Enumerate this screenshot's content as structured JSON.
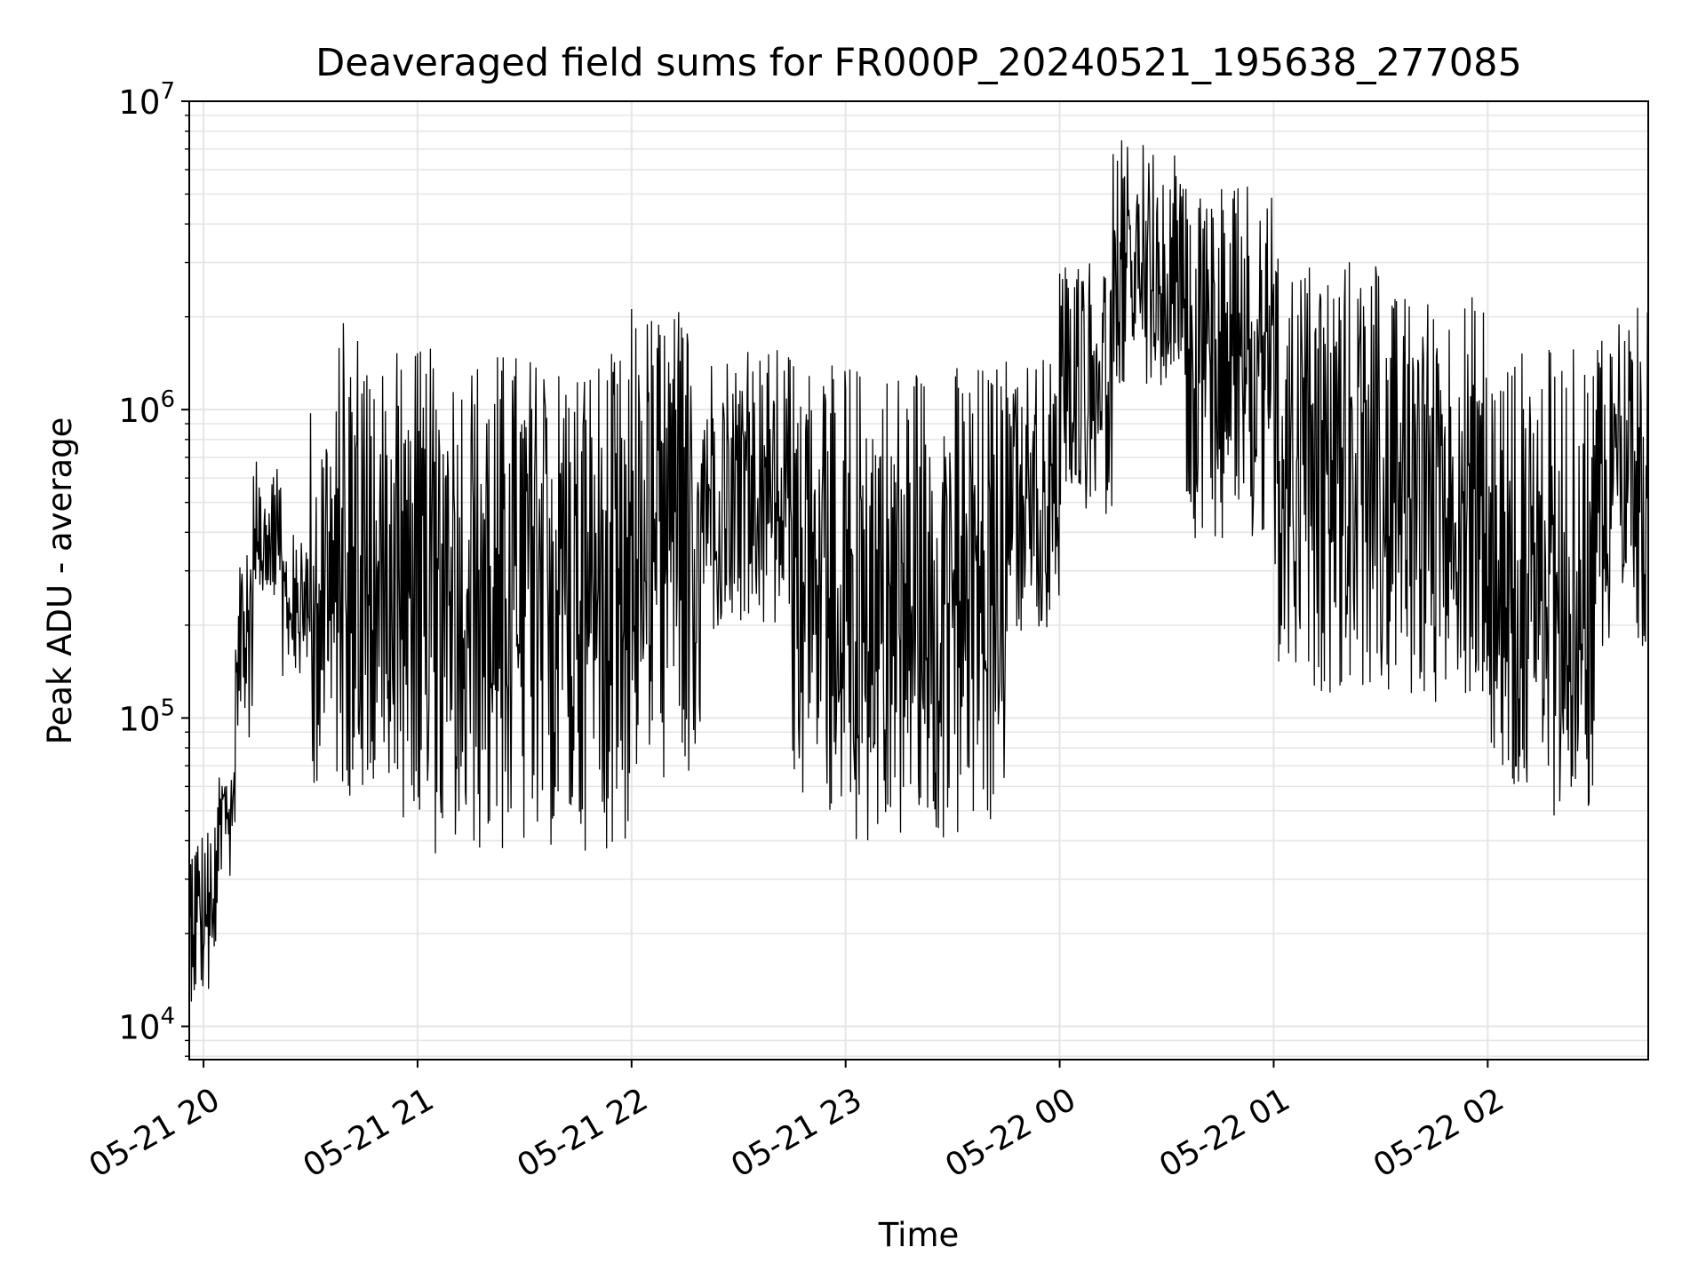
{
  "chart_data": {
    "type": "line",
    "title": "Deaveraged field sums for FR000P_20240521_195638_277085",
    "xlabel": "Time",
    "ylabel": "Peak ADU - average",
    "yscale": "log",
    "ylim": [
      7800,
      10000000
    ],
    "xlim": [
      "2024-05-21 19:56",
      "2024-05-22 02:45"
    ],
    "grid": true,
    "line_color": "#000000",
    "grid_color": "#e6e6e6",
    "x_ticks": [
      {
        "t": "2024-05-21 20:00",
        "label": "05-21 20"
      },
      {
        "t": "2024-05-21 21:00",
        "label": "05-21 21"
      },
      {
        "t": "2024-05-21 22:00",
        "label": "05-21 22"
      },
      {
        "t": "2024-05-21 23:00",
        "label": "05-21 23"
      },
      {
        "t": "2024-05-22 00:00",
        "label": "05-22 00"
      },
      {
        "t": "2024-05-22 01:00",
        "label": "05-22 01"
      },
      {
        "t": "2024-05-22 02:00",
        "label": "05-22 02"
      }
    ],
    "y_ticks": [
      {
        "v": 10000,
        "base": "10",
        "exp": "4"
      },
      {
        "v": 100000,
        "base": "10",
        "exp": "5"
      },
      {
        "v": 1000000,
        "base": "10",
        "exp": "6"
      },
      {
        "v": 10000000,
        "base": "10",
        "exp": "7"
      }
    ],
    "series": [
      {
        "segments": [
          {
            "start": "2024-05-21 19:56",
            "end": "2024-05-21 20:04",
            "low": 12000,
            "high": 45000
          },
          {
            "start": "2024-05-21 20:04",
            "end": "2024-05-21 20:09",
            "low": 30000,
            "high": 70000
          },
          {
            "start": "2024-05-21 20:09",
            "end": "2024-05-21 20:14",
            "low": 80000,
            "high": 350000
          },
          {
            "start": "2024-05-21 20:14",
            "end": "2024-05-21 20:22",
            "low": 250000,
            "high": 680000
          },
          {
            "start": "2024-05-21 20:22",
            "end": "2024-05-21 20:30",
            "low": 130000,
            "high": 400000
          },
          {
            "start": "2024-05-21 20:30",
            "end": "2024-05-21 20:38",
            "low": 60000,
            "high": 1100000
          },
          {
            "start": "2024-05-21 20:38",
            "end": "2024-05-21 20:45",
            "low": 55000,
            "high": 2000000
          },
          {
            "start": "2024-05-21 20:45",
            "end": "2024-05-21 21:00",
            "low": 45000,
            "high": 1550000
          },
          {
            "start": "2024-05-21 21:00",
            "end": "2024-05-21 21:30",
            "low": 35000,
            "high": 1600000
          },
          {
            "start": "2024-05-21 21:30",
            "end": "2024-05-21 22:00",
            "low": 37000,
            "high": 1550000
          },
          {
            "start": "2024-05-21 22:00",
            "end": "2024-05-21 22:20",
            "low": 60000,
            "high": 2200000
          },
          {
            "start": "2024-05-21 22:20",
            "end": "2024-05-21 22:45",
            "low": 180000,
            "high": 1600000
          },
          {
            "start": "2024-05-21 22:45",
            "end": "2024-05-21 23:00",
            "low": 50000,
            "high": 1500000
          },
          {
            "start": "2024-05-21 23:00",
            "end": "2024-05-21 23:45",
            "low": 38000,
            "high": 1450000
          },
          {
            "start": "2024-05-21 23:45",
            "end": "2024-05-22 00:00",
            "low": 180000,
            "high": 1500000
          },
          {
            "start": "2024-05-22 00:00",
            "end": "2024-05-22 00:15",
            "low": 450000,
            "high": 3200000
          },
          {
            "start": "2024-05-22 00:15",
            "end": "2024-05-22 00:35",
            "low": 1200000,
            "high": 7500000
          },
          {
            "start": "2024-05-22 00:35",
            "end": "2024-05-22 01:00",
            "low": 380000,
            "high": 6000000
          },
          {
            "start": "2024-05-22 01:00",
            "end": "2024-05-22 01:30",
            "low": 120000,
            "high": 3200000
          },
          {
            "start": "2024-05-22 01:30",
            "end": "2024-05-22 02:00",
            "low": 110000,
            "high": 2400000
          },
          {
            "start": "2024-05-22 02:00",
            "end": "2024-05-22 02:30",
            "low": 48000,
            "high": 1600000
          },
          {
            "start": "2024-05-22 02:30",
            "end": "2024-05-22 02:45",
            "low": 140000,
            "high": 2200000
          }
        ]
      }
    ]
  }
}
